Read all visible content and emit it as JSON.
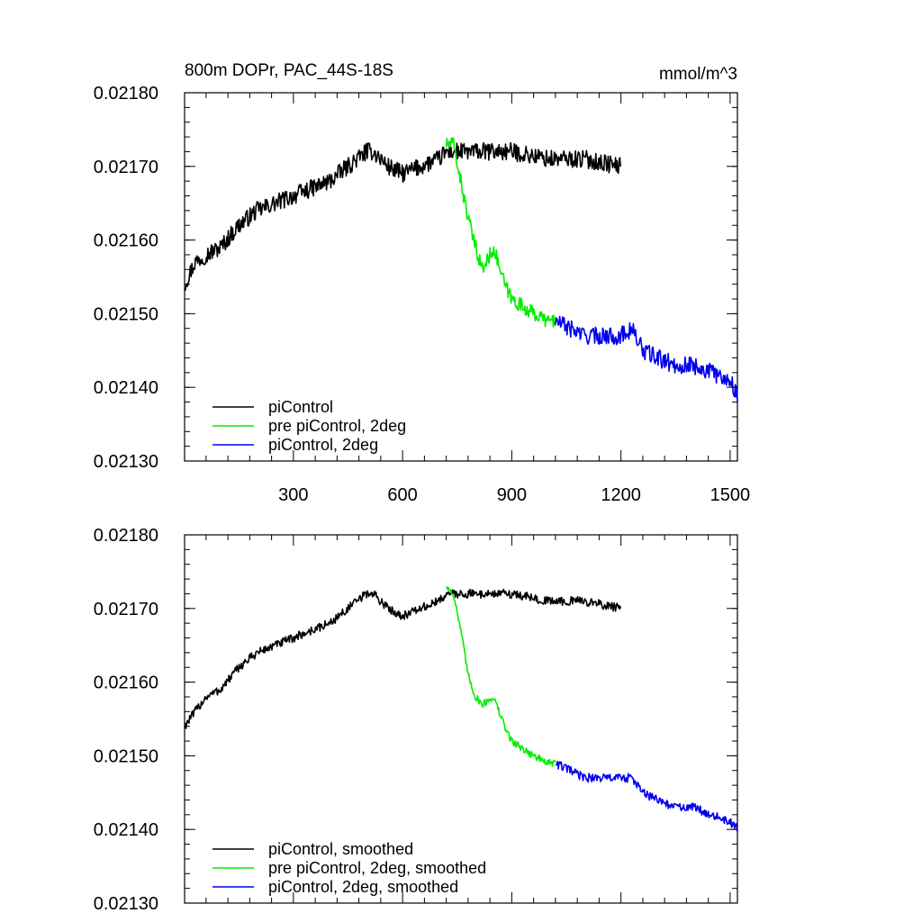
{
  "chart_data": [
    {
      "type": "line",
      "title_left": "800m DOPr, PAC_44S-18S",
      "title_right": "mmol/m^3",
      "xlim": [
        1,
        1520
      ],
      "ylim": [
        0.0213,
        0.0218
      ],
      "xticks": [
        300,
        600,
        900,
        1200,
        1500
      ],
      "xtick_labels": [
        "300",
        "600",
        "900",
        "1200",
        "1500"
      ],
      "yticks": [
        0.0213,
        0.0214,
        0.0215,
        0.0216,
        0.0217,
        0.0218
      ],
      "ytick_labels": [
        "0.02130",
        "0.02140",
        "0.02150",
        "0.02160",
        "0.02170",
        "0.02180"
      ],
      "grid": false,
      "legend_location": "bottom-left",
      "series": [
        {
          "name": "piControl",
          "color": "#000000",
          "noise": 1.2e-05,
          "x": [
            1,
            30,
            60,
            100,
            150,
            200,
            250,
            300,
            350,
            400,
            450,
            500,
            520,
            560,
            600,
            650,
            700,
            720,
            800,
            900,
            1000,
            1100,
            1200
          ],
          "y": [
            0.02154,
            0.02157,
            0.02158,
            0.02159,
            0.02162,
            0.02164,
            0.02165,
            0.02166,
            0.02167,
            0.02168,
            0.0217,
            0.02172,
            0.02172,
            0.0217,
            0.02169,
            0.0217,
            0.02171,
            0.02172,
            0.02172,
            0.02172,
            0.02171,
            0.02171,
            0.0217
          ]
        },
        {
          "name": "pre piControl, 2deg",
          "color": "#00ee00",
          "noise": 1e-05,
          "x": [
            720,
            740,
            760,
            780,
            800,
            820,
            850,
            880,
            900,
            930,
            960,
            1000,
            1020
          ],
          "y": [
            0.02173,
            0.02173,
            0.02168,
            0.02163,
            0.02159,
            0.02156,
            0.02159,
            0.02154,
            0.02152,
            0.02151,
            0.0215,
            0.02149,
            0.02149
          ]
        },
        {
          "name": "piControl, 2deg",
          "color": "#0000ee",
          "noise": 1.2e-05,
          "x": [
            1020,
            1060,
            1100,
            1150,
            1200,
            1230,
            1260,
            1300,
            1350,
            1400,
            1450,
            1500,
            1520
          ],
          "y": [
            0.02149,
            0.02148,
            0.02147,
            0.02147,
            0.02147,
            0.02148,
            0.02145,
            0.02144,
            0.02143,
            0.02143,
            0.02142,
            0.02141,
            0.02139
          ]
        }
      ]
    },
    {
      "type": "line",
      "title_left": "",
      "title_right": "",
      "xlim": [
        1,
        1520
      ],
      "ylim": [
        0.0213,
        0.0218
      ],
      "xticks": [
        300,
        600,
        900,
        1200,
        1500
      ],
      "xtick_labels": [],
      "yticks": [
        0.0213,
        0.0214,
        0.0215,
        0.0216,
        0.0217,
        0.0218
      ],
      "ytick_labels": [
        "0.02130",
        "0.02140",
        "0.02150",
        "0.02160",
        "0.02170",
        "0.02180"
      ],
      "grid": false,
      "legend_location": "bottom-left",
      "series": [
        {
          "name": "piControl, smoothed",
          "color": "#000000",
          "noise": 6e-06,
          "x": [
            1,
            30,
            60,
            100,
            150,
            200,
            250,
            300,
            350,
            400,
            450,
            500,
            520,
            560,
            600,
            650,
            700,
            720,
            800,
            900,
            1000,
            1100,
            1200
          ],
          "y": [
            0.02154,
            0.02156,
            0.02158,
            0.02159,
            0.02162,
            0.02164,
            0.02165,
            0.02166,
            0.02167,
            0.02168,
            0.0217,
            0.02172,
            0.02172,
            0.0217,
            0.02169,
            0.0217,
            0.02171,
            0.02172,
            0.02172,
            0.02172,
            0.02171,
            0.02171,
            0.0217
          ]
        },
        {
          "name": "pre piControl, 2deg, smoothed",
          "color": "#00ee00",
          "noise": 5e-06,
          "x": [
            720,
            740,
            760,
            780,
            800,
            820,
            850,
            880,
            900,
            930,
            960,
            1000,
            1020
          ],
          "y": [
            0.02173,
            0.02172,
            0.02167,
            0.02161,
            0.02158,
            0.02157,
            0.02158,
            0.02154,
            0.02152,
            0.02151,
            0.0215,
            0.02149,
            0.02149
          ]
        },
        {
          "name": "piControl, 2deg, smoothed",
          "color": "#0000ee",
          "noise": 6e-06,
          "x": [
            1020,
            1060,
            1100,
            1150,
            1200,
            1230,
            1260,
            1300,
            1350,
            1400,
            1450,
            1500,
            1520
          ],
          "y": [
            0.02149,
            0.02148,
            0.02147,
            0.02147,
            0.02147,
            0.02147,
            0.02145,
            0.02144,
            0.02143,
            0.02143,
            0.02142,
            0.02141,
            0.0214
          ]
        }
      ]
    }
  ]
}
